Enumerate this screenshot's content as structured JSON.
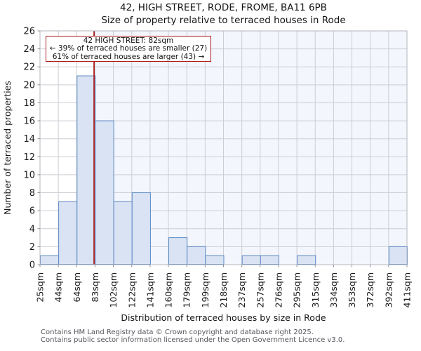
{
  "header": {
    "title_line1": "42, HIGH STREET, RODE, FROME, BA11 6PB",
    "title_line2": "Size of property relative to terraced houses in Rode"
  },
  "annotation": {
    "line1": "42 HIGH STREET: 82sqm",
    "line2": "← 39% of terraced houses are smaller (27)",
    "line3": "61% of terraced houses are larger (43) →"
  },
  "chart_data": {
    "type": "bar",
    "title": "42, HIGH STREET, RODE, FROME, BA11 6PB — Size of property relative to terraced houses in Rode",
    "categories": [
      "25sqm",
      "44sqm",
      "64sqm",
      "83sqm",
      "102sqm",
      "122sqm",
      "141sqm",
      "160sqm",
      "179sqm",
      "199sqm",
      "218sqm",
      "237sqm",
      "257sqm",
      "276sqm",
      "295sqm",
      "315sqm",
      "334sqm",
      "353sqm",
      "372sqm",
      "392sqm",
      "411sqm"
    ],
    "bin_edges_sqm": [
      25,
      44,
      64,
      83,
      102,
      122,
      141,
      160,
      179,
      199,
      218,
      237,
      257,
      276,
      295,
      315,
      334,
      353,
      372,
      392,
      411
    ],
    "values": [
      1,
      7,
      21,
      16,
      7,
      8,
      0,
      3,
      2,
      1,
      0,
      1,
      1,
      0,
      1,
      0,
      0,
      0,
      0,
      2
    ],
    "marker_value_sqm": 82,
    "xlabel": "Distribution of terraced houses by size in Rode",
    "ylabel": "Number of terraced properties",
    "ylim": [
      0,
      26
    ],
    "ytick_step": 2,
    "grid": true,
    "legend": false,
    "colors": {
      "bar_fill": "#d9e3f3",
      "bar_stroke": "#5b88c4",
      "marker_line": "#aa1c1c",
      "grid": "#cdced4",
      "spine": "#b3b5bd",
      "tick": "#85868d",
      "shaded_region": "#f3f6fc",
      "tick_label": "#1a1a1a"
    }
  },
  "footer": {
    "line1": "Contains HM Land Registry data © Crown copyright and database right 2025.",
    "line2": "Contains public sector information licensed under the Open Government Licence v3.0."
  }
}
